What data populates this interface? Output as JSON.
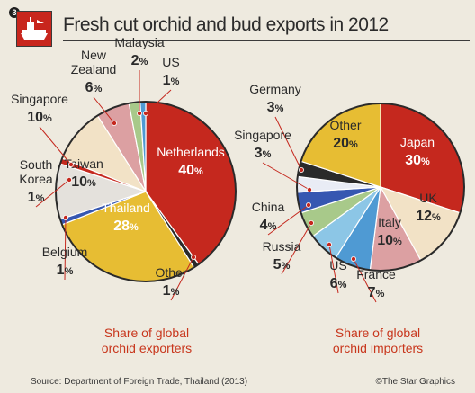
{
  "header": {
    "badge": "3",
    "title": "Fresh cut orchid and bud exports in 2012"
  },
  "captions": {
    "left": [
      "Share of global",
      "orchid exporters"
    ],
    "right": [
      "Share of global",
      "orchid importers"
    ]
  },
  "footer": {
    "source": "Source: Department of Foreign Trade, Thailand (2013)",
    "credit": "©The Star Graphics"
  },
  "colors": {
    "red": "#c5281e",
    "gold": "#e7bd33",
    "beige": "#f2e2c6",
    "pink": "#dca0a2",
    "dark": "#2a2a2a",
    "blue": "#3657b1",
    "caption_red": "#c8361c"
  },
  "chart_data": [
    {
      "type": "pie",
      "title": "Share of global orchid exporters",
      "slices": [
        {
          "label": "Netherlands",
          "value": 40,
          "color": "#c5281e"
        },
        {
          "label": "Other",
          "value": 1,
          "color": "#2a2a2a"
        },
        {
          "label": "Thailand",
          "value": 28,
          "color": "#e7bd33"
        },
        {
          "label": "Belgium",
          "value": 1,
          "color": "#3657b1"
        },
        {
          "label": "Taiwan",
          "value": 10,
          "color": "#e4e1dc"
        },
        {
          "label": "South Korea",
          "value": 1,
          "color": "#c5281e"
        },
        {
          "label": "Singapore",
          "value": 10,
          "color": "#f2e2c6"
        },
        {
          "label": "New Zealand",
          "value": 6,
          "color": "#dca0a2"
        },
        {
          "label": "Malaysia",
          "value": 2,
          "color": "#a8c98a"
        },
        {
          "label": "US",
          "value": 1,
          "color": "#4f9ad3"
        }
      ]
    },
    {
      "type": "pie",
      "title": "Share of global orchid importers",
      "slices": [
        {
          "label": "Japan",
          "value": 30,
          "color": "#c5281e"
        },
        {
          "label": "UK",
          "value": 12,
          "color": "#f2e2c6"
        },
        {
          "label": "Italy",
          "value": 10,
          "color": "#dca0a2"
        },
        {
          "label": "France",
          "value": 7,
          "color": "#4f9ad3"
        },
        {
          "label": "US",
          "value": 6,
          "color": "#8cc6e6"
        },
        {
          "label": "Russia",
          "value": 5,
          "color": "#a8c98a"
        },
        {
          "label": "China",
          "value": 4,
          "color": "#3657b1"
        },
        {
          "label": "Singapore",
          "value": 3,
          "color": "#e9ecf5"
        },
        {
          "label": "Germany",
          "value": 3,
          "color": "#2a2a2a"
        },
        {
          "label": "Other",
          "value": 20,
          "color": "#e7bd33"
        }
      ]
    }
  ],
  "labels": {
    "left": [
      {
        "name": [
          "Netherlands"
        ],
        "value": "40",
        "inside": true,
        "light": true
      },
      {
        "name": [
          "Thailand"
        ],
        "value": "28",
        "inside": true,
        "light": true
      },
      {
        "name": [
          "Taiwan"
        ],
        "value": "10",
        "inside": true,
        "light": false
      },
      {
        "name": [
          "Malaysia"
        ],
        "value": "2"
      },
      {
        "name": [
          "US"
        ],
        "value": "1"
      },
      {
        "name": [
          "New",
          "Zealand"
        ],
        "value": "6"
      },
      {
        "name": [
          "Singapore"
        ],
        "value": "10"
      },
      {
        "name": [
          "South",
          "Korea"
        ],
        "value": "1"
      },
      {
        "name": [
          "Belgium"
        ],
        "value": "1"
      },
      {
        "name": [
          "Other"
        ],
        "value": "1"
      }
    ],
    "right": [
      {
        "name": [
          "Other"
        ],
        "value": "20",
        "inside": true,
        "light": false
      },
      {
        "name": [
          "Japan"
        ],
        "value": "30",
        "inside": true,
        "light": true
      },
      {
        "name": [
          "UK"
        ],
        "value": "12",
        "inside": true,
        "light": false
      },
      {
        "name": [
          "Italy"
        ],
        "value": "10",
        "inside": true,
        "light": false
      },
      {
        "name": [
          "Germany"
        ],
        "value": "3"
      },
      {
        "name": [
          "Singapore"
        ],
        "value": "3"
      },
      {
        "name": [
          "China"
        ],
        "value": "4"
      },
      {
        "name": [
          "Russia"
        ],
        "value": "5"
      },
      {
        "name": [
          "US"
        ],
        "value": "6"
      },
      {
        "name": [
          "France"
        ],
        "value": "7"
      }
    ],
    "pct": "%"
  }
}
